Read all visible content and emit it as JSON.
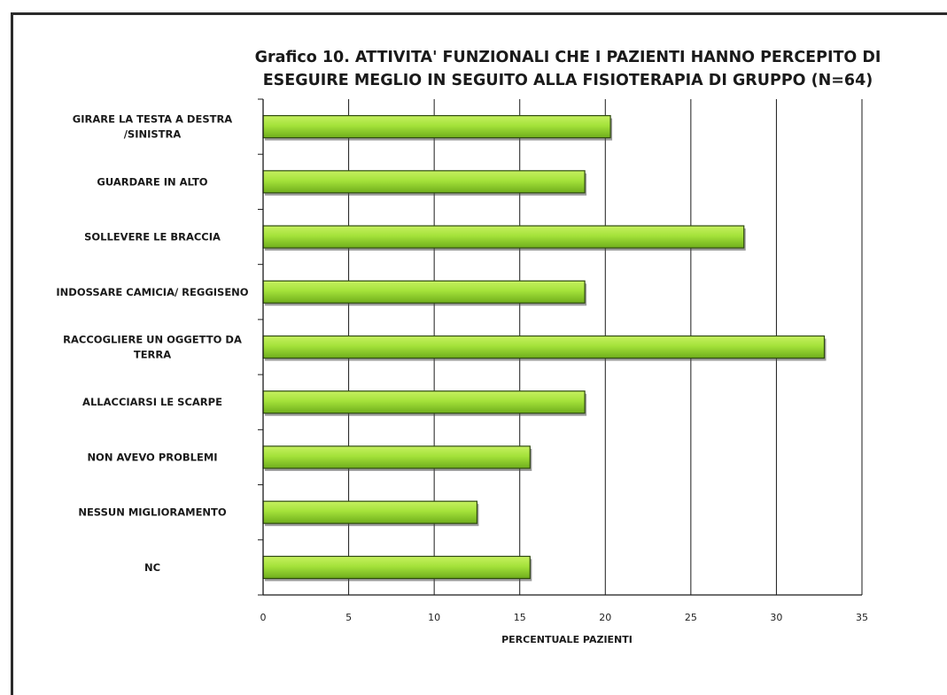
{
  "chart_data": {
    "type": "bar",
    "orientation": "horizontal",
    "title": "Grafico 10. ATTIVITA' FUNZIONALI CHE I PAZIENTI HANNO PERCEPITO DI ESEGUIRE MEGLIO IN SEGUITO ALLA FISIOTERAPIA DI GRUPPO (N=64)",
    "title_lines": [
      "Grafico 10. ATTIVITA' FUNZIONALI CHE I PAZIENTI HANNO PERCEPITO DI",
      "ESEGUIRE MEGLIO IN SEGUITO ALLA FISIOTERAPIA DI GRUPPO (N=64)"
    ],
    "xlabel": "PERCENTUALE PAZIENTI",
    "ylabel": "",
    "xlim": [
      0,
      35
    ],
    "xticks": [
      0,
      5,
      10,
      15,
      20,
      25,
      30,
      35
    ],
    "grid": "vertical major gridlines",
    "legend": "none",
    "bar_color": "#99dd33",
    "categories": [
      [
        "GIRARE LA TESTA A DESTRA",
        "/SINISTRA"
      ],
      [
        "GUARDARE IN ALTO"
      ],
      [
        "SOLLEVERE LE BRACCIA"
      ],
      [
        "INDOSSARE CAMICIA/ REGGISENO"
      ],
      [
        "RACCOGLIERE UN OGGETTO DA",
        "TERRA"
      ],
      [
        "ALLACCIARSI LE SCARPE"
      ],
      [
        "NON AVEVO PROBLEMI"
      ],
      [
        "NESSUN MIGLIORAMENTO"
      ],
      [
        "NC"
      ]
    ],
    "values": [
      20.3,
      18.8,
      28.1,
      18.8,
      32.8,
      18.8,
      15.6,
      12.5,
      15.6
    ]
  }
}
